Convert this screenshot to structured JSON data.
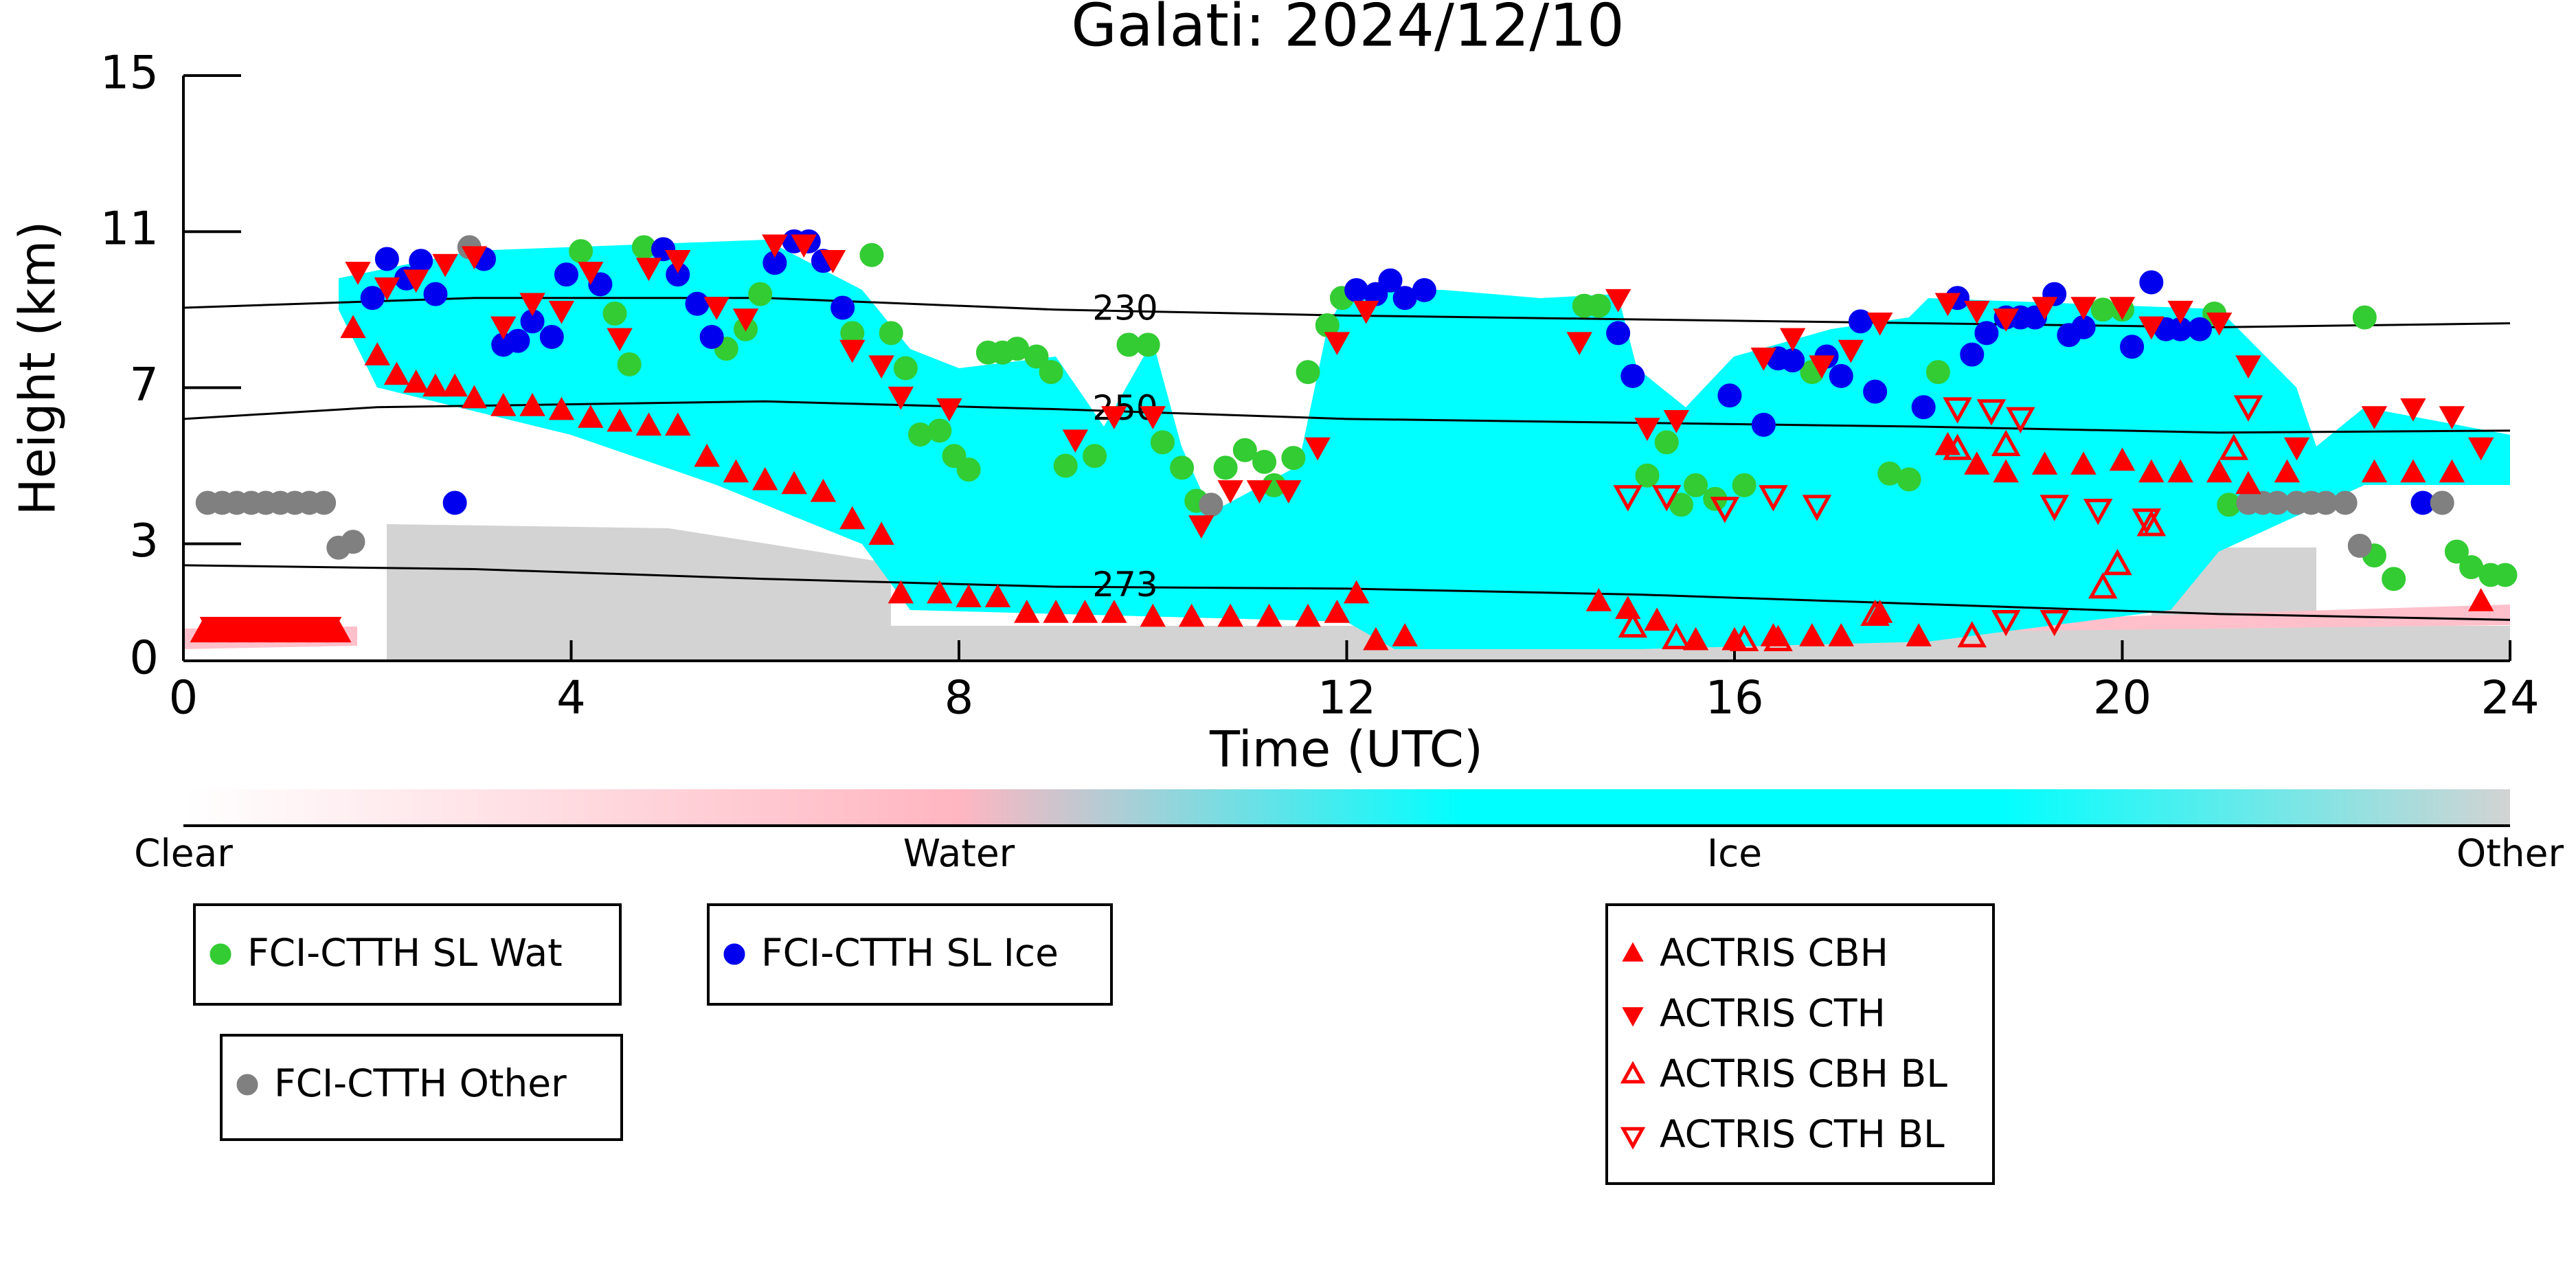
{
  "chart_data": {
    "type": "scatter",
    "title": "Galati: 2024/12/10",
    "x_label": "Time (UTC)",
    "y_label": "Height (km)",
    "xlim": [
      0,
      24
    ],
    "xticks": [
      0,
      4,
      8,
      12,
      16,
      20,
      24
    ],
    "ylim": [
      0,
      15
    ],
    "yticks": [
      0,
      3,
      7,
      11,
      15
    ],
    "contours": [
      {
        "label": 230,
        "x": [
          0,
          3,
          6,
          9,
          12,
          15,
          18,
          21,
          24
        ],
        "y": [
          9.05,
          9.3,
          9.3,
          9.0,
          8.85,
          8.75,
          8.65,
          8.55,
          8.65
        ]
      },
      {
        "label": 250,
        "x": [
          0,
          2,
          6,
          9,
          12,
          15,
          18,
          21,
          24
        ],
        "y": [
          6.2,
          6.5,
          6.65,
          6.45,
          6.2,
          6.1,
          6.0,
          5.85,
          5.9
        ]
      },
      {
        "label": 273,
        "x": [
          0,
          3,
          6,
          9,
          12,
          15,
          18,
          21,
          24
        ],
        "y": [
          2.45,
          2.35,
          2.1,
          1.9,
          1.85,
          1.7,
          1.45,
          1.2,
          1.05
        ]
      }
    ],
    "colorbar": {
      "labels": [
        "Clear",
        "Water",
        "Ice",
        "Other"
      ],
      "colors": [
        "#ffffff",
        "#ffb6c1",
        "#00ffff",
        "#d3d3d3"
      ]
    },
    "series": [
      {
        "name": "FCI-CTTH SL Wat",
        "color": "#33cc33",
        "marker": "circle",
        "filled": true,
        "x": [
          4.1,
          4.75,
          4.45,
          4.6,
          5.6,
          5.8,
          5.95,
          7.1,
          6.9,
          7.3,
          7.45,
          7.6,
          7.8,
          7.95,
          8.1,
          8.3,
          8.45,
          8.6,
          8.8,
          8.95,
          9.1,
          9.4,
          9.75,
          9.95,
          10.1,
          10.3,
          10.45,
          10.75,
          10.95,
          11.15,
          11.25,
          11.45,
          11.6,
          11.8,
          11.95,
          14.45,
          14.6,
          15.1,
          15.3,
          15.45,
          15.6,
          15.8,
          16.1,
          16.8,
          17.6,
          17.8,
          18.1,
          19.8,
          20.0,
          20.95,
          21.1,
          22.5,
          22.6,
          22.8,
          23.45,
          23.6,
          23.8,
          23.95
        ],
        "y": [
          10.5,
          10.6,
          8.9,
          7.6,
          8.0,
          8.5,
          9.4,
          10.4,
          8.4,
          8.4,
          7.5,
          5.8,
          5.9,
          5.25,
          4.9,
          7.9,
          7.9,
          8.0,
          7.8,
          7.4,
          5.0,
          5.25,
          8.1,
          8.1,
          5.6,
          4.95,
          4.1,
          4.95,
          5.4,
          5.1,
          4.5,
          5.2,
          7.4,
          8.6,
          9.3,
          9.1,
          9.1,
          4.75,
          5.6,
          4.0,
          4.5,
          4.15,
          4.5,
          7.4,
          4.8,
          4.65,
          7.4,
          9.0,
          9.0,
          8.9,
          4.0,
          8.8,
          2.7,
          2.1,
          2.8,
          2.4,
          2.2,
          2.2
        ]
      },
      {
        "name": "FCI-CTTH SL Ice",
        "color": "#0000ee",
        "marker": "circle",
        "filled": true,
        "x": [
          1.95,
          2.1,
          2.3,
          2.45,
          2.6,
          2.8,
          3.1,
          3.3,
          3.45,
          3.6,
          3.8,
          3.95,
          4.3,
          4.95,
          5.1,
          5.3,
          5.45,
          6.1,
          6.3,
          6.45,
          6.6,
          6.8,
          12.1,
          12.3,
          12.45,
          12.6,
          12.8,
          14.8,
          14.95,
          15.95,
          16.3,
          16.45,
          16.6,
          16.95,
          17.1,
          17.3,
          17.45,
          17.95,
          18.3,
          18.45,
          18.6,
          18.8,
          18.95,
          19.1,
          19.3,
          19.45,
          19.6,
          20.1,
          20.3,
          20.45,
          20.6,
          20.8,
          23.1
        ],
        "y": [
          9.3,
          10.3,
          9.8,
          10.25,
          9.4,
          4.05,
          10.3,
          8.1,
          8.2,
          8.7,
          8.3,
          9.9,
          9.65,
          10.55,
          9.9,
          9.15,
          8.3,
          10.2,
          10.75,
          10.75,
          10.25,
          9.05,
          9.5,
          9.4,
          9.75,
          9.3,
          9.5,
          8.4,
          7.3,
          6.8,
          6.05,
          7.75,
          7.7,
          7.8,
          7.3,
          8.7,
          6.9,
          6.5,
          9.3,
          7.85,
          8.4,
          8.8,
          8.8,
          8.8,
          9.4,
          8.35,
          8.55,
          8.05,
          9.7,
          8.5,
          8.5,
          8.5,
          4.05
        ]
      },
      {
        "name": "FCI-CTTH Other",
        "color": "#808080",
        "marker": "circle",
        "filled": true,
        "x": [
          0.25,
          0.4,
          0.55,
          0.7,
          0.85,
          1.0,
          1.15,
          1.3,
          1.45,
          1.6,
          1.75,
          2.95,
          10.6,
          21.3,
          21.45,
          21.6,
          21.8,
          21.95,
          22.1,
          22.3,
          22.45,
          23.3
        ],
        "y": [
          4.05,
          4.05,
          4.05,
          4.05,
          4.05,
          4.05,
          4.05,
          4.05,
          4.05,
          2.9,
          3.05,
          10.6,
          4.0,
          4.05,
          4.05,
          4.05,
          4.05,
          4.05,
          4.05,
          4.05,
          2.95,
          4.05
        ]
      },
      {
        "name": "ACTRIS CBH",
        "color": "#ff0000",
        "marker": "triangle-up",
        "filled": true,
        "x": [
          0.2,
          0.4,
          0.6,
          0.8,
          1.0,
          1.2,
          1.4,
          1.6,
          1.75,
          2.0,
          2.2,
          2.4,
          2.6,
          2.8,
          3.0,
          3.3,
          3.6,
          3.9,
          4.2,
          4.5,
          4.8,
          5.1,
          5.4,
          5.7,
          6.0,
          6.3,
          6.6,
          6.9,
          7.2,
          7.4,
          7.8,
          8.1,
          8.4,
          8.7,
          9.0,
          9.3,
          9.6,
          10.0,
          10.4,
          10.8,
          11.2,
          11.6,
          11.9,
          12.1,
          12.3,
          12.6,
          14.6,
          14.9,
          15.2,
          15.6,
          16.0,
          16.4,
          16.8,
          17.1,
          17.5,
          17.9,
          18.2,
          18.5,
          18.8,
          19.2,
          19.6,
          20.0,
          20.3,
          20.6,
          21.0,
          21.3,
          21.7,
          22.6,
          23.0,
          23.4,
          23.7
        ],
        "y": [
          0.7,
          0.7,
          0.7,
          0.7,
          0.7,
          0.7,
          0.7,
          0.7,
          8.5,
          7.8,
          7.3,
          7.1,
          7.0,
          7.0,
          6.7,
          6.5,
          6.5,
          6.4,
          6.2,
          6.1,
          6.0,
          6.0,
          5.2,
          4.8,
          4.6,
          4.5,
          4.3,
          3.6,
          3.2,
          1.7,
          1.7,
          1.6,
          1.6,
          1.2,
          1.2,
          1.2,
          1.2,
          1.1,
          1.1,
          1.1,
          1.1,
          1.1,
          1.2,
          1.7,
          0.5,
          0.6,
          1.5,
          1.3,
          1.0,
          0.5,
          0.5,
          0.6,
          0.6,
          0.6,
          1.2,
          0.6,
          5.5,
          5.0,
          4.8,
          5.0,
          5.0,
          5.1,
          4.8,
          4.8,
          4.8,
          4.5,
          4.8,
          4.8,
          4.8,
          4.8,
          1.5
        ]
      },
      {
        "name": "ACTRIS CTH",
        "color": "#ff0000",
        "marker": "triangle-down",
        "filled": true,
        "x": [
          0.3,
          0.5,
          0.7,
          0.9,
          1.1,
          1.3,
          1.5,
          1.8,
          2.1,
          2.4,
          2.7,
          3.0,
          3.3,
          3.6,
          3.9,
          4.2,
          4.5,
          4.8,
          5.1,
          5.5,
          5.8,
          6.1,
          6.4,
          6.7,
          6.9,
          7.2,
          7.4,
          7.9,
          9.2,
          9.6,
          10.0,
          10.5,
          10.8,
          11.1,
          11.4,
          11.7,
          11.9,
          12.2,
          14.4,
          14.8,
          15.1,
          15.4,
          16.3,
          16.6,
          16.9,
          17.2,
          17.5,
          18.2,
          18.5,
          18.8,
          19.2,
          19.6,
          20.0,
          20.3,
          20.6,
          21.0,
          21.3,
          21.8,
          22.6,
          23.0,
          23.4,
          23.7
        ],
        "y": [
          0.9,
          0.9,
          0.9,
          0.9,
          0.9,
          0.9,
          0.9,
          10.0,
          9.6,
          9.8,
          10.2,
          10.4,
          8.6,
          9.2,
          9.0,
          10.0,
          8.3,
          10.1,
          10.3,
          9.1,
          8.8,
          10.7,
          10.7,
          10.3,
          8.0,
          7.6,
          6.8,
          6.5,
          5.7,
          6.3,
          6.3,
          3.5,
          4.4,
          4.4,
          4.4,
          5.5,
          8.2,
          9.0,
          8.2,
          9.3,
          6.0,
          6.2,
          7.8,
          8.3,
          7.6,
          8.0,
          8.7,
          9.2,
          9.0,
          8.8,
          9.1,
          9.1,
          9.1,
          8.6,
          9.0,
          8.7,
          7.6,
          5.5,
          6.3,
          6.5,
          6.3,
          5.5
        ]
      },
      {
        "name": "ACTRIS CBH BL",
        "color": "#ff0000",
        "marker": "triangle-up",
        "filled": false,
        "x": [
          14.95,
          15.4,
          16.1,
          16.45,
          17.45,
          18.45,
          18.3,
          18.8,
          19.8,
          19.95,
          20.3,
          21.15
        ],
        "y": [
          0.85,
          0.55,
          0.5,
          0.5,
          1.15,
          0.6,
          5.4,
          5.5,
          1.85,
          2.45,
          3.45,
          5.4
        ]
      },
      {
        "name": "ACTRIS CTH BL",
        "color": "#ff0000",
        "marker": "triangle-down",
        "filled": false,
        "x": [
          14.9,
          15.3,
          15.9,
          16.4,
          16.85,
          18.3,
          18.65,
          18.95,
          19.3,
          19.75,
          18.8,
          19.3,
          20.25,
          21.3
        ],
        "y": [
          4.25,
          4.25,
          3.95,
          4.25,
          4.0,
          6.5,
          6.45,
          6.25,
          4.0,
          3.9,
          1.05,
          1.05,
          3.65,
          6.55
        ]
      }
    ]
  }
}
